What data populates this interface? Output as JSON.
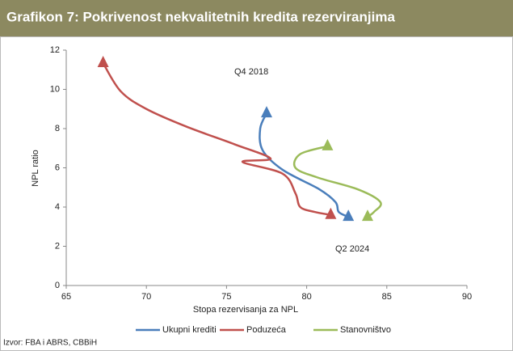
{
  "chart_data": {
    "type": "line",
    "title": "Grafikon 7: Pokrivenost nekvalitetnih kredita rezerviranjima",
    "x_label": "Stopa rezervisanja za NPL",
    "y_label": "NPL ratio",
    "annotations": [
      "Q4 2018",
      "Q2 2024"
    ],
    "source": "Izvor: FBA i ABRS, CBBiH",
    "xlim": [
      65,
      90
    ],
    "xticks": [
      65,
      70,
      75,
      80,
      85,
      90
    ],
    "ylim": [
      0,
      12
    ],
    "yticks": [
      0,
      2,
      4,
      6,
      8,
      10,
      12
    ],
    "series": [
      {
        "name": "Ukupni krediti",
        "color": "#4a7ebb",
        "x": [
          77.5,
          77.1,
          77.25,
          78.5,
          80.8,
          81.8,
          82.0,
          82.6
        ],
        "y": [
          8.78,
          8.0,
          6.9,
          5.9,
          4.9,
          4.25,
          3.75,
          3.5
        ]
      },
      {
        "name": "Poduzeća",
        "color": "#c0504d",
        "x": [
          67.3,
          68.4,
          70.0,
          72.5,
          75.5,
          77.75,
          76.0,
          78.5,
          79.3,
          79.6,
          80.5,
          81.5
        ],
        "y": [
          11.34,
          9.9,
          9.0,
          8.1,
          7.2,
          6.47,
          6.3,
          5.7,
          4.7,
          4.0,
          3.75,
          3.6
        ]
      },
      {
        "name": "Stanovništvo",
        "color": "#9bbb59",
        "x": [
          81.3,
          79.6,
          79.3,
          80.7,
          83.2,
          84.6,
          84.2,
          83.8
        ],
        "y": [
          7.1,
          6.7,
          6.0,
          5.5,
          4.9,
          4.25,
          3.75,
          3.5
        ]
      }
    ]
  }
}
